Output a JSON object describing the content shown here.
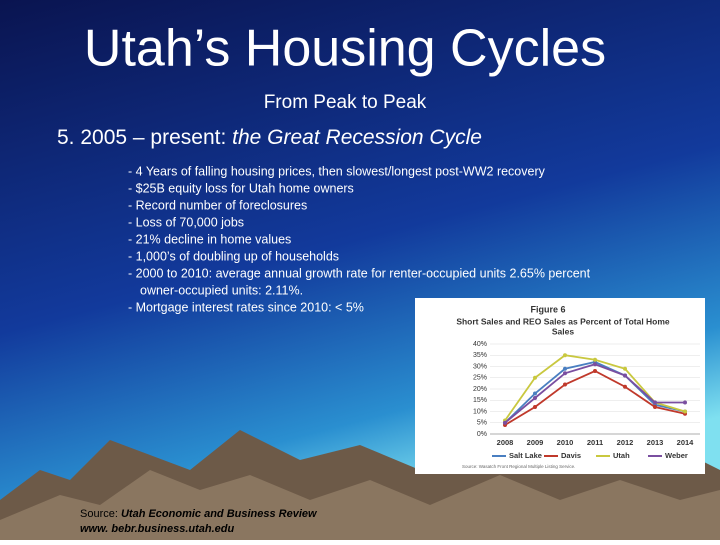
{
  "slide": {
    "title": "Utah’s Housing Cycles",
    "subtitle": "From Peak to Peak",
    "heading": {
      "lead": "5. 2005 – present: ",
      "emphasis": "the Great Recession Cycle"
    },
    "bullets": [
      [
        "- 4 Years of falling housing prices, then slowest/longest post-WW2 recovery"
      ],
      [
        "- $25B equity loss for Utah home owners"
      ],
      [
        "- Record number of foreclosures"
      ],
      [
        "- Loss of 70,000 jobs"
      ],
      [
        "- 21% decline in home values"
      ],
      [
        "- 1,000’s of doubling up of households"
      ],
      [
        "- 2000 to 2010: average annual growth rate for renter-occupied units 2.65% percent",
        "owner-occupied units: 2.11%."
      ],
      [
        "- Mortgage interest rates since 2010: < 5%"
      ]
    ],
    "source": {
      "lead": "Source: ",
      "publication": "Utah Economic and Business Review",
      "url": "www. bebr.business.utah.edu"
    }
  },
  "chart_data": {
    "type": "line",
    "title": "Figure 6",
    "subtitle": [
      "Short Sales and REO Sales as Percent of Total Home",
      "Sales"
    ],
    "categories": [
      "2008",
      "2009",
      "2010",
      "2011",
      "2012",
      "2013",
      "2014"
    ],
    "series": [
      {
        "name": "Salt Lake",
        "color": "#4a7fc1",
        "values": [
          5,
          18,
          29,
          32,
          26,
          13,
          10
        ]
      },
      {
        "name": "Davis",
        "color": "#c0392b",
        "values": [
          4,
          12,
          22,
          28,
          21,
          12,
          9
        ]
      },
      {
        "name": "Utah",
        "color": "#c9c83f",
        "values": [
          6,
          25,
          35,
          33,
          29,
          14,
          10
        ]
      },
      {
        "name": "Weber",
        "color": "#7a4fa0",
        "values": [
          5,
          16,
          27,
          31,
          26,
          14,
          14
        ]
      }
    ],
    "ylim": [
      0,
      40
    ],
    "yticks": [
      {
        "value": 0,
        "label": "0%"
      },
      {
        "value": 5,
        "label": "5%"
      },
      {
        "value": 10,
        "label": "10%"
      },
      {
        "value": 15,
        "label": "15%"
      },
      {
        "value": 20,
        "label": "20%"
      },
      {
        "value": 25,
        "label": "25%"
      },
      {
        "value": 30,
        "label": "30%"
      },
      {
        "value": 35,
        "label": "35%"
      },
      {
        "value": 40,
        "label": "40%"
      }
    ],
    "grid": true,
    "source": "Source: Wasatch Front Regional Multiple Listing Service."
  }
}
